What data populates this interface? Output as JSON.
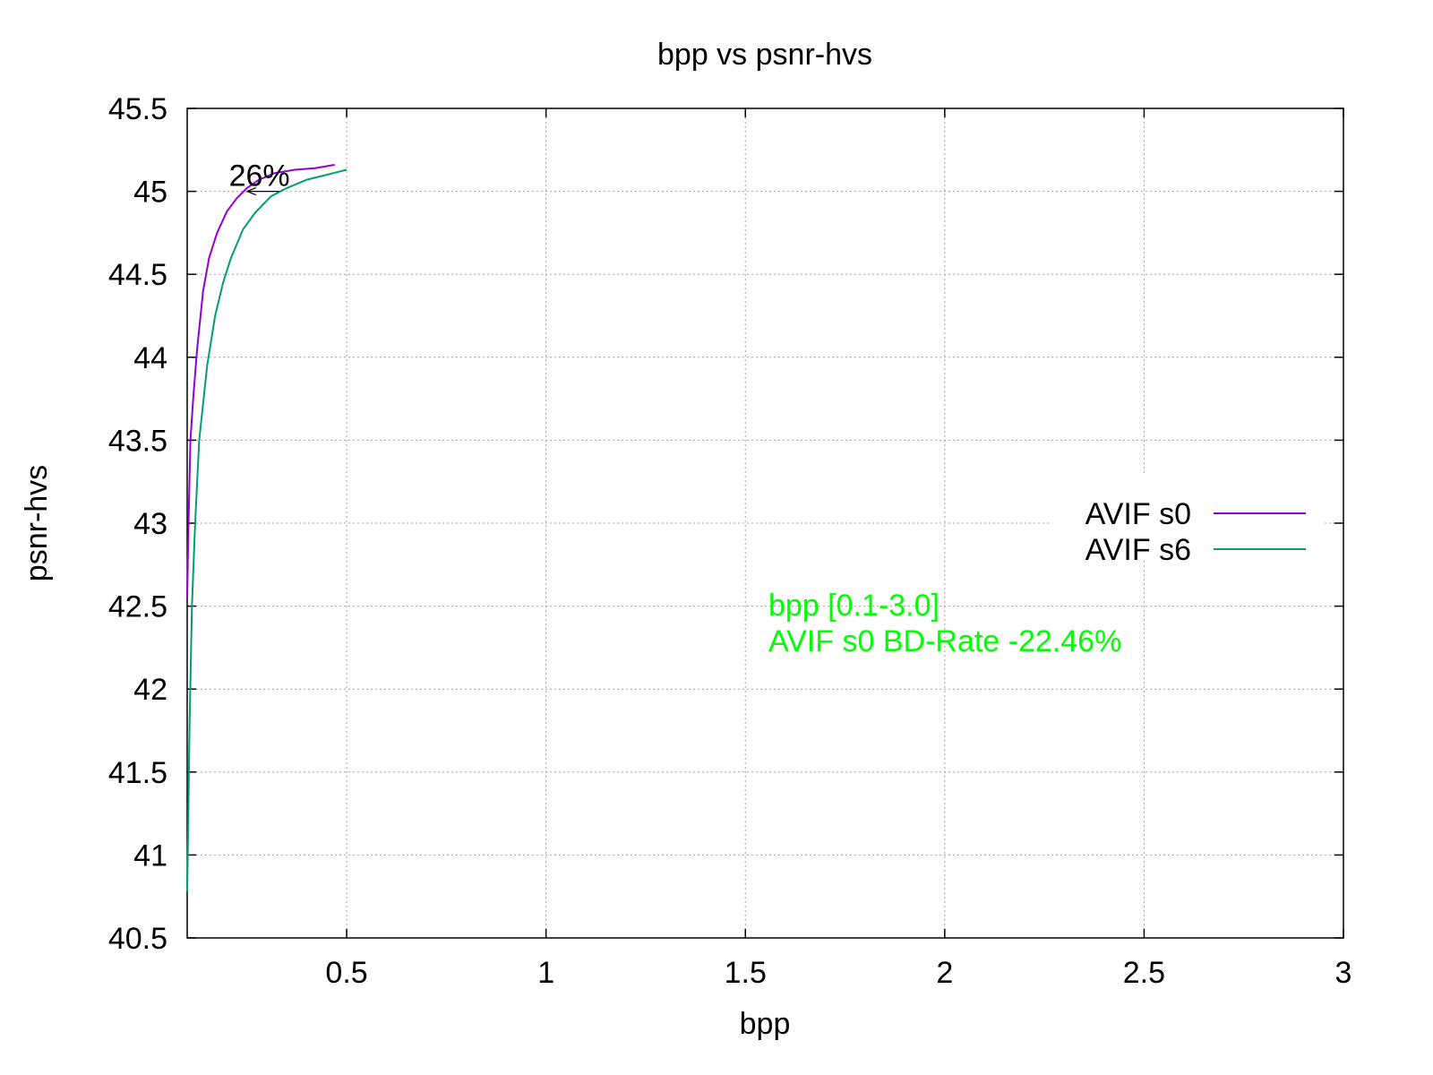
{
  "chart_data": {
    "type": "line",
    "title": "bpp vs psnr-hvs",
    "xlabel": "bpp",
    "ylabel": "psnr-hvs",
    "xlim": [
      0.1,
      3.0
    ],
    "ylim": [
      40.5,
      45.5
    ],
    "x_ticks": [
      0.5,
      1,
      1.5,
      2,
      2.5,
      3
    ],
    "y_ticks": [
      40.5,
      41,
      41.5,
      42,
      42.5,
      43,
      43.5,
      44,
      44.5,
      45,
      45.5
    ],
    "grid": true,
    "legend_position": "right",
    "series": [
      {
        "name": "AVIF s0",
        "color": "#9400d3",
        "x": [
          0.1,
          0.103,
          0.108,
          0.115,
          0.125,
          0.14,
          0.155,
          0.175,
          0.2,
          0.225,
          0.25,
          0.28,
          0.32,
          0.37,
          0.42,
          0.47
        ],
        "y": [
          42.55,
          42.95,
          43.5,
          43.75,
          44.05,
          44.4,
          44.6,
          44.75,
          44.88,
          44.96,
          45.02,
          45.07,
          45.11,
          45.13,
          45.14,
          45.16
        ]
      },
      {
        "name": "AVIF s6",
        "color": "#009e73",
        "x": [
          0.1,
          0.102,
          0.106,
          0.112,
          0.12,
          0.13,
          0.15,
          0.17,
          0.19,
          0.21,
          0.24,
          0.27,
          0.31,
          0.35,
          0.4,
          0.45,
          0.5
        ],
        "y": [
          40.78,
          41.1,
          41.8,
          42.5,
          43.0,
          43.5,
          43.95,
          44.25,
          44.45,
          44.6,
          44.77,
          44.87,
          44.97,
          45.02,
          45.07,
          45.1,
          45.13
        ]
      }
    ],
    "annotations": [
      {
        "text": "26%",
        "arrow_from": [
          0.33,
          45.0
        ],
        "arrow_to": [
          0.25,
          45.0
        ],
        "color": "#000000"
      }
    ],
    "notes": {
      "color": "#00ff00",
      "lines": [
        "bpp [0.1-3.0]",
        "AVIF s0 BD-Rate -22.46%"
      ]
    }
  }
}
